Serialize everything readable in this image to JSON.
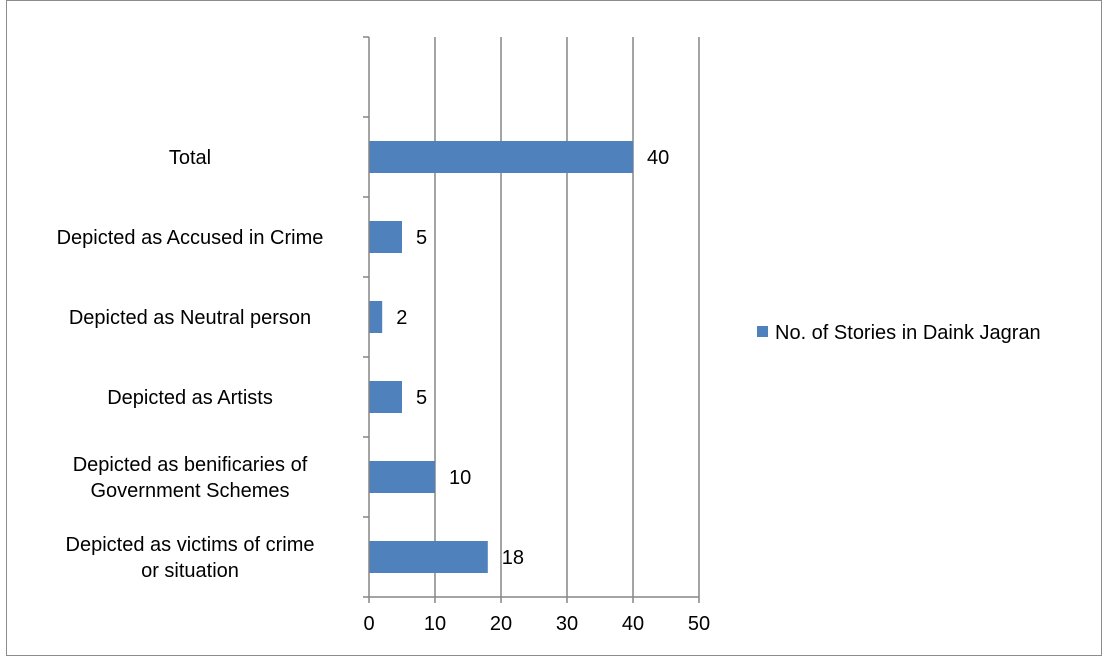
{
  "chart_data": {
    "type": "bar",
    "orientation": "horizontal",
    "categories": [
      "Depicted as victims of crime or situation",
      "Depicted as benificaries of Government Schemes",
      "Depicted as Artists",
      "Depicted as Neutral person",
      "Depicted as Accused in Crime",
      "Total"
    ],
    "category_lines": [
      [
        "Depicted as victims of crime",
        "or situation"
      ],
      [
        "Depicted as benificaries of",
        "Government Schemes"
      ],
      [
        "Depicted as Artists"
      ],
      [
        "Depicted as Neutral person"
      ],
      [
        "Depicted as Accused in Crime"
      ],
      [
        "Total"
      ]
    ],
    "series": [
      {
        "name": "No. of Stories in Daink Jagran",
        "values": [
          18,
          10,
          5,
          2,
          5,
          40
        ],
        "color": "#4f81bd"
      }
    ],
    "data_labels": [
      "18",
      "10",
      "5",
      "2",
      "5",
      "40"
    ],
    "xlim": [
      0,
      50
    ],
    "x_ticks": [
      0,
      10,
      20,
      30,
      40,
      50
    ],
    "x_tick_labels": [
      "0",
      "10",
      "20",
      "30",
      "40",
      "50"
    ],
    "empty_top_slot": true,
    "grid": true,
    "legend_position": "right"
  }
}
